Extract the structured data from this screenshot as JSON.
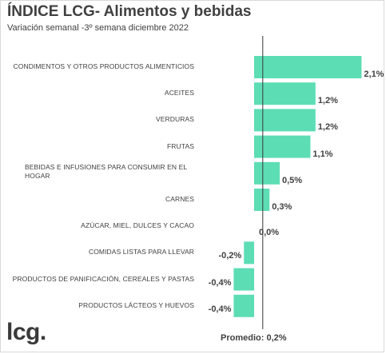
{
  "header": {
    "title": "ÍNDICE LCG- Alimentos y bebidas",
    "subtitle": "Variación semanal -3º semana diciembre 2022"
  },
  "footer": {
    "logo": "lcg.",
    "average_label": "Promedio: 0,2%"
  },
  "colors": {
    "bar": "#5dddb4",
    "average_line": "#3a3a3a"
  },
  "chart_data": {
    "type": "bar",
    "orientation": "horizontal",
    "categories": [
      "CONDIMENTOS Y OTROS PRODUCTOS ALIMENTICIOS",
      "ACEITES",
      "VERDURAS",
      "FRUTAS",
      "BEBIDAS E INFUSIONES PARA CONSUMIR EN EL HOGAR",
      "CARNES",
      "AZÚCAR, MIEL, DULCES Y CACAO",
      "COMIDAS LISTAS PARA LLEVAR",
      "PRODUCTOS DE PANIFICACIÓN, CEREALES Y PASTAS",
      "PRODUCTOS LÁCTEOS Y HUEVOS"
    ],
    "values": [
      2.1,
      1.2,
      1.2,
      1.1,
      0.5,
      0.3,
      0.0,
      -0.2,
      -0.4,
      -0.4
    ],
    "value_labels": [
      "2,1%",
      "1,2%",
      "1,2%",
      "1,1%",
      "0,5%",
      "0,3%",
      "0,0%",
      "-0,2%",
      "-0,4%",
      "-0,4%"
    ],
    "average": 0.2,
    "unit": "%",
    "grid": false,
    "legend": "none"
  }
}
